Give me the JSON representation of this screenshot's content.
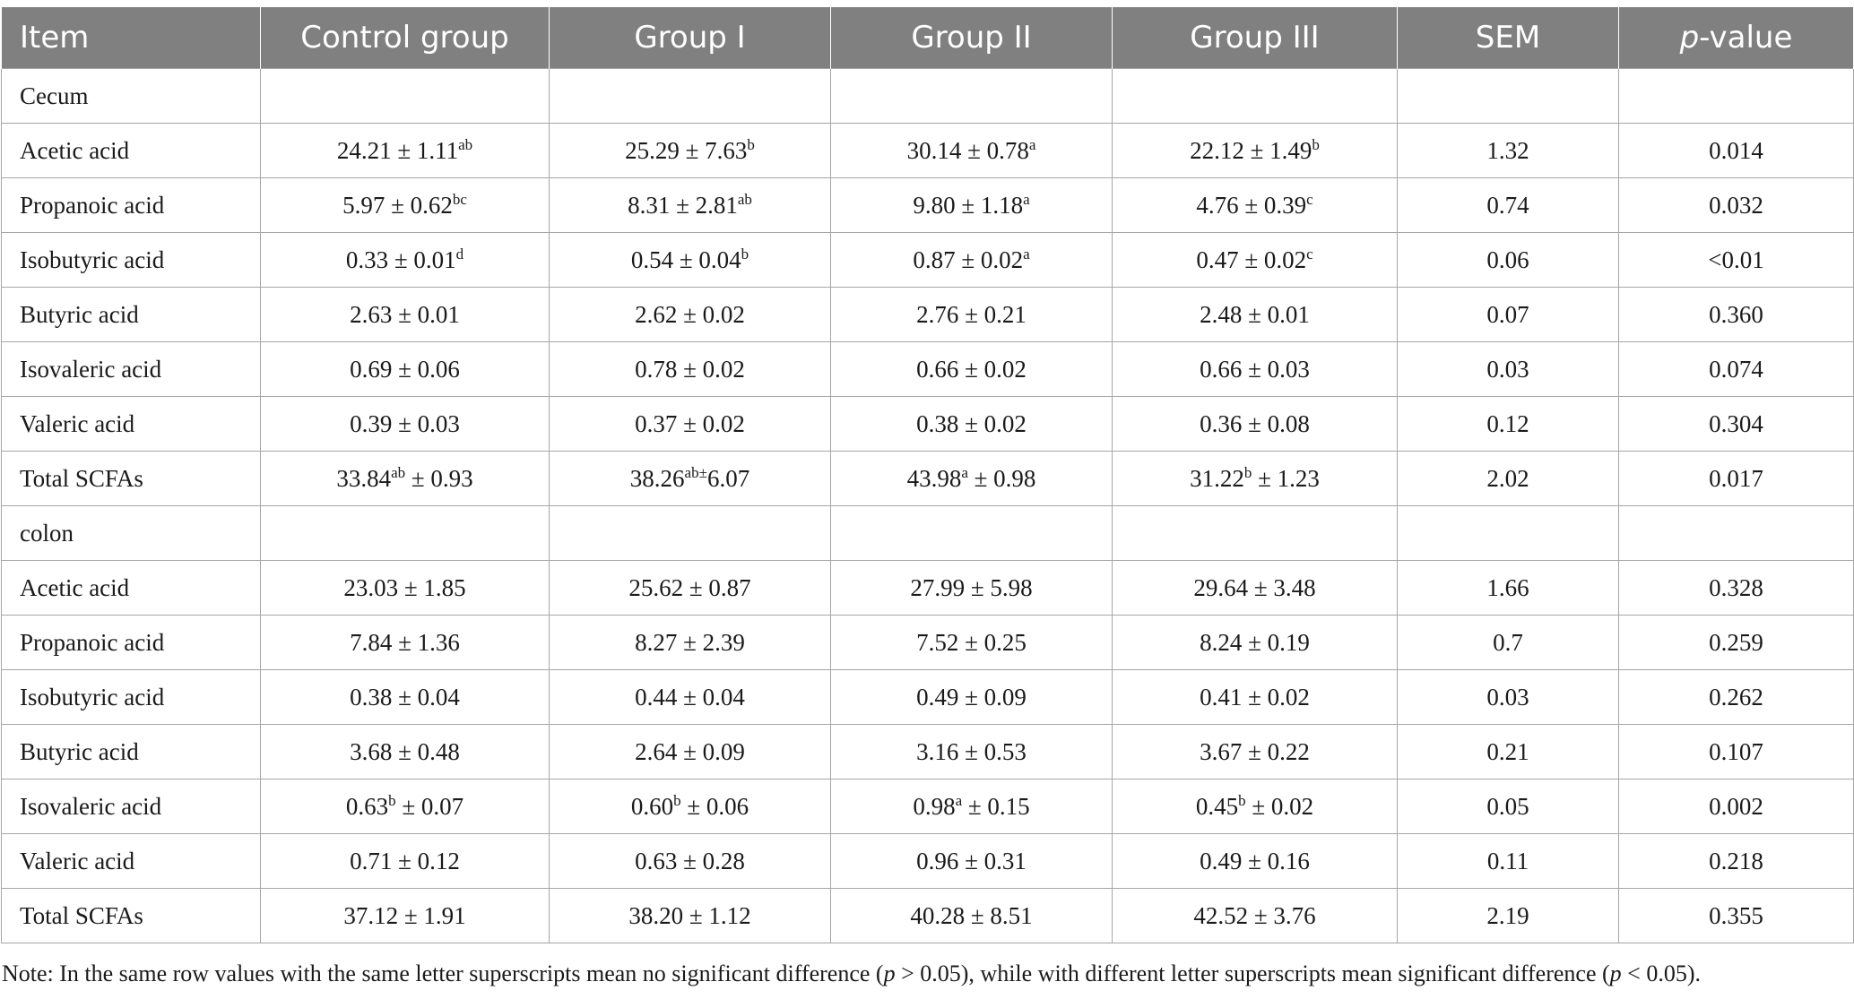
{
  "headers": [
    "Item",
    "Control group",
    "Group I",
    "Group II",
    "Group III",
    "SEM",
    "p-value"
  ],
  "rows": [
    {
      "item": "Cecum",
      "cells": [
        [
          "",
          ""
        ],
        [
          "",
          ""
        ],
        [
          "",
          ""
        ],
        [
          "",
          ""
        ],
        [
          "",
          ""
        ],
        [
          "",
          ""
        ]
      ]
    },
    {
      "item": "Acetic acid",
      "cells": [
        [
          "24.21 ± 1.11",
          "ab",
          ""
        ],
        [
          "25.29 ± 7.63",
          "b",
          ""
        ],
        [
          "30.14 ± 0.78",
          "a",
          ""
        ],
        [
          "22.12 ± 1.49",
          "b",
          ""
        ],
        [
          "1.32",
          "",
          ""
        ],
        [
          "0.014",
          "",
          ""
        ]
      ]
    },
    {
      "item": "Propanoic acid",
      "cells": [
        [
          "5.97 ± 0.62",
          "bc",
          ""
        ],
        [
          "8.31 ± 2.81",
          "ab",
          ""
        ],
        [
          "9.80 ± 1.18",
          "a",
          ""
        ],
        [
          "4.76 ± 0.39",
          "c",
          ""
        ],
        [
          "0.74",
          "",
          ""
        ],
        [
          "0.032",
          "",
          ""
        ]
      ]
    },
    {
      "item": "Isobutyric acid",
      "cells": [
        [
          "0.33 ± 0.01",
          "d",
          ""
        ],
        [
          "0.54 ± 0.04",
          "b",
          ""
        ],
        [
          "0.87 ± 0.02",
          "a",
          ""
        ],
        [
          "0.47 ± 0.02",
          "c",
          ""
        ],
        [
          "0.06",
          "",
          ""
        ],
        [
          "<0.01",
          "",
          ""
        ]
      ]
    },
    {
      "item": "Butyric acid",
      "cells": [
        [
          "2.63 ± 0.01",
          "",
          ""
        ],
        [
          "2.62 ± 0.02",
          "",
          ""
        ],
        [
          "2.76 ± 0.21",
          "",
          ""
        ],
        [
          "2.48 ± 0.01",
          "",
          ""
        ],
        [
          "0.07",
          "",
          ""
        ],
        [
          "0.360",
          "",
          ""
        ]
      ]
    },
    {
      "item": "Isovaleric acid",
      "cells": [
        [
          "0.69 ± 0.06",
          "",
          ""
        ],
        [
          "0.78 ± 0.02",
          "",
          ""
        ],
        [
          "0.66 ± 0.02",
          "",
          ""
        ],
        [
          "0.66 ± 0.03",
          "",
          ""
        ],
        [
          "0.03",
          "",
          ""
        ],
        [
          "0.074",
          "",
          ""
        ]
      ]
    },
    {
      "item": "Valeric acid",
      "cells": [
        [
          "0.39 ± 0.03",
          "",
          ""
        ],
        [
          "0.37 ± 0.02",
          "",
          ""
        ],
        [
          "0.38 ± 0.02",
          "",
          ""
        ],
        [
          "0.36 ± 0.08",
          "",
          ""
        ],
        [
          "0.12",
          "",
          ""
        ],
        [
          "0.304",
          "",
          ""
        ]
      ]
    },
    {
      "item": "Total SCFAs",
      "cells": [
        [
          "33.84",
          "ab",
          " ± 0.93"
        ],
        [
          "38.26",
          "ab±",
          "6.07"
        ],
        [
          "43.98",
          "a",
          " ± 0.98"
        ],
        [
          "31.22",
          "b",
          " ± 1.23"
        ],
        [
          "2.02",
          "",
          ""
        ],
        [
          "0.017",
          "",
          ""
        ]
      ]
    },
    {
      "item": "colon",
      "cells": [
        [
          "",
          ""
        ],
        [
          "",
          ""
        ],
        [
          "",
          ""
        ],
        [
          "",
          ""
        ],
        [
          "",
          ""
        ],
        [
          "",
          ""
        ]
      ]
    },
    {
      "item": "Acetic acid",
      "cells": [
        [
          "23.03 ± 1.85",
          "",
          ""
        ],
        [
          "25.62 ± 0.87",
          "",
          ""
        ],
        [
          "27.99 ± 5.98",
          "",
          ""
        ],
        [
          "29.64 ± 3.48",
          "",
          ""
        ],
        [
          "1.66",
          "",
          ""
        ],
        [
          "0.328",
          "",
          ""
        ]
      ]
    },
    {
      "item": "Propanoic acid",
      "cells": [
        [
          "7.84 ± 1.36",
          "",
          ""
        ],
        [
          "8.27 ± 2.39",
          "",
          ""
        ],
        [
          "7.52 ± 0.25",
          "",
          ""
        ],
        [
          "8.24 ± 0.19",
          "",
          ""
        ],
        [
          "0.7",
          "",
          ""
        ],
        [
          "0.259",
          "",
          ""
        ]
      ]
    },
    {
      "item": "Isobutyric acid",
      "cells": [
        [
          "0.38 ± 0.04",
          "",
          ""
        ],
        [
          "0.44 ± 0.04",
          "",
          ""
        ],
        [
          "0.49 ± 0.09",
          "",
          ""
        ],
        [
          "0.41 ± 0.02",
          "",
          ""
        ],
        [
          "0.03",
          "",
          ""
        ],
        [
          "0.262",
          "",
          ""
        ]
      ]
    },
    {
      "item": "Butyric acid",
      "cells": [
        [
          "3.68 ± 0.48",
          "",
          ""
        ],
        [
          "2.64 ± 0.09",
          "",
          ""
        ],
        [
          "3.16 ± 0.53",
          "",
          ""
        ],
        [
          "3.67 ± 0.22",
          "",
          ""
        ],
        [
          "0.21",
          "",
          ""
        ],
        [
          "0.107",
          "",
          ""
        ]
      ]
    },
    {
      "item": "Isovaleric acid",
      "cells": [
        [
          "0.63",
          "b",
          " ± 0.07"
        ],
        [
          "0.60",
          "b",
          " ± 0.06"
        ],
        [
          "0.98",
          "a",
          " ± 0.15"
        ],
        [
          "0.45",
          "b",
          " ± 0.02"
        ],
        [
          "0.05",
          "",
          ""
        ],
        [
          "0.002",
          "",
          ""
        ]
      ]
    },
    {
      "item": "Valeric acid",
      "cells": [
        [
          "0.71 ± 0.12",
          "",
          ""
        ],
        [
          "0.63 ± 0.28",
          "",
          ""
        ],
        [
          "0.96 ± 0.31",
          "",
          ""
        ],
        [
          "0.49 ± 0.16",
          "",
          ""
        ],
        [
          "0.11",
          "",
          ""
        ],
        [
          "0.218",
          "",
          ""
        ]
      ]
    },
    {
      "item": "Total SCFAs",
      "cells": [
        [
          "37.12 ± 1.91",
          "",
          ""
        ],
        [
          "38.20 ± 1.12",
          "",
          ""
        ],
        [
          "40.28 ± 8.51",
          "",
          ""
        ],
        [
          "42.52 ± 3.76",
          "",
          ""
        ],
        [
          "2.19",
          "",
          ""
        ],
        [
          "0.355",
          "",
          ""
        ]
      ]
    }
  ],
  "note": {
    "prefix": "Note: In the same row values with the same letter superscripts mean no significant difference (",
    "cond1_var": "p",
    "cond1_rest": " > 0.05), while with different letter superscripts mean significant difference (",
    "cond2_var": "p",
    "cond2_rest": " < 0.05)."
  }
}
